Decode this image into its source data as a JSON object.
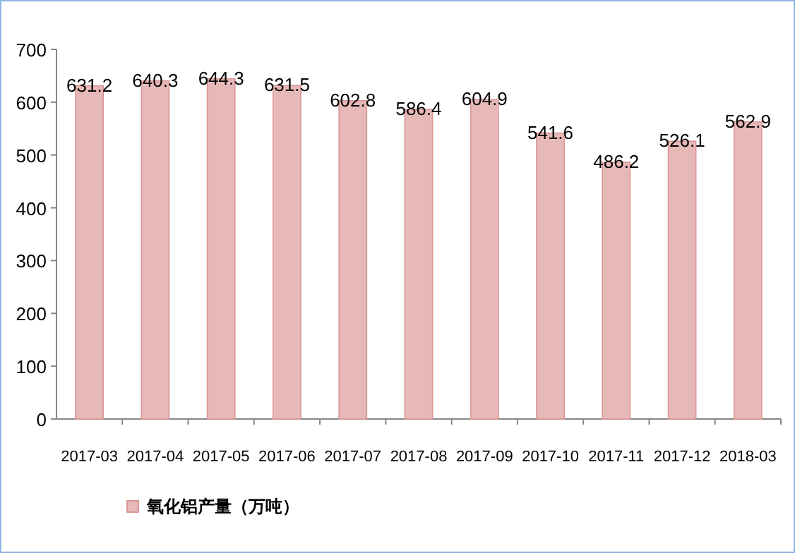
{
  "chart_data": {
    "type": "bar",
    "categories": [
      "2017-03",
      "2017-04",
      "2017-05",
      "2017-06",
      "2017-07",
      "2017-08",
      "2017-09",
      "2017-10",
      "2017-11",
      "2017-12",
      "2018-03"
    ],
    "series": [
      {
        "name": "氧化铝产量（万吨）",
        "color": "#e6b9b8",
        "values": [
          631.2,
          640.3,
          644.3,
          631.5,
          602.8,
          586.4,
          604.9,
          541.6,
          486.2,
          526.1,
          562.9
        ]
      }
    ],
    "ylim": [
      0,
      700
    ],
    "yticks": [
      0,
      100,
      200,
      300,
      400,
      500,
      600,
      700
    ],
    "data_labels": true,
    "legend": "bottom left"
  }
}
